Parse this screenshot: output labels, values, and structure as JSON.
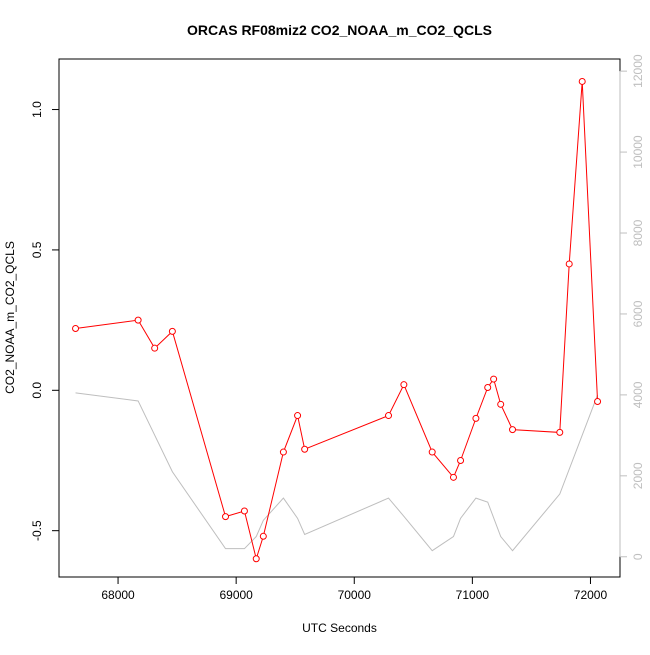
{
  "chart_data": {
    "type": "line",
    "title": "ORCAS RF08miz2 CO2_NOAA_m_CO2_QCLS",
    "xlabel": "UTC Seconds",
    "ylabel": "CO2_NOAA_m_CO2_QCLS",
    "y2label": "",
    "xlim": [
      67500,
      72250
    ],
    "ylim": [
      -0.665,
      1.18
    ],
    "y2lim": [
      -500,
      12300
    ],
    "xticks": [
      68000,
      69000,
      70000,
      71000,
      72000
    ],
    "xtick_labels": [
      "68000",
      "69000",
      "70000",
      "71000",
      "72000"
    ],
    "yticks": [
      -0.5,
      0.0,
      0.5,
      1.0
    ],
    "ytick_labels": [
      "-0.5",
      "0.0",
      "0.5",
      "1.0"
    ],
    "y2ticks": [
      0,
      2000,
      4000,
      6000,
      8000,
      10000,
      12000
    ],
    "y2tick_labels": [
      "0",
      "2000",
      "4000",
      "6000",
      "8000",
      "10000",
      "12000"
    ],
    "grid": false,
    "colors": {
      "primary": "#ff0000",
      "secondary": "#bebebe",
      "axis": "#000000",
      "right_axis": "#bebebe"
    },
    "series": [
      {
        "axis": "left",
        "style": "line+points",
        "color": "#ff0000",
        "x": [
          67640,
          68170,
          68310,
          68460,
          68910,
          69070,
          69170,
          69230,
          69400,
          69520,
          69580,
          70290,
          70420,
          70660,
          70840,
          70900,
          71030,
          71130,
          71180,
          71240,
          71340,
          71740,
          71820,
          71930,
          72060
        ],
        "y": [
          0.22,
          0.25,
          0.15,
          0.21,
          -0.45,
          -0.43,
          -0.6,
          -0.52,
          -0.22,
          -0.09,
          -0.21,
          -0.09,
          0.02,
          -0.22,
          -0.31,
          -0.25,
          -0.1,
          0.01,
          0.04,
          -0.05,
          -0.14,
          -0.15,
          0.45,
          1.1,
          -0.04
        ]
      },
      {
        "axis": "right",
        "style": "line",
        "color": "#bebebe",
        "x": [
          67640,
          68170,
          68460,
          68910,
          69070,
          69170,
          69230,
          69400,
          69520,
          69580,
          70290,
          70420,
          70660,
          70840,
          70900,
          71030,
          71130,
          71240,
          71340,
          71740,
          72060
        ],
        "y": [
          4050,
          3850,
          2100,
          200,
          200,
          500,
          900,
          1450,
          950,
          550,
          1450,
          1000,
          150,
          500,
          950,
          1450,
          1350,
          500,
          150,
          1550,
          4000
        ]
      }
    ]
  }
}
